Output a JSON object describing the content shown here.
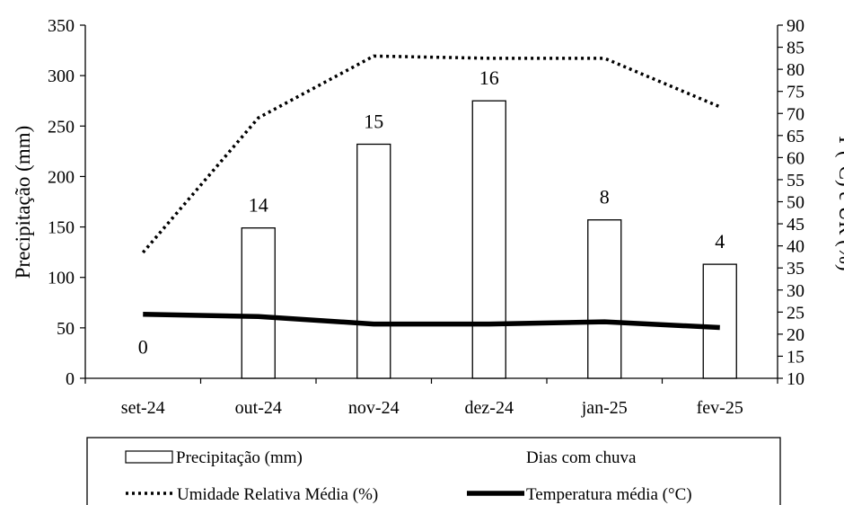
{
  "chart_data": {
    "type": "bar",
    "categories": [
      "set-24",
      "out-24",
      "nov-24",
      "dez-24",
      "jan-25",
      "fev-25"
    ],
    "series": [
      {
        "name": "Precipitação (mm)",
        "type": "bar",
        "axis": "left",
        "values": [
          0,
          149,
          232,
          275,
          157,
          113
        ],
        "fill": "#ffffff",
        "stroke": "#000000"
      },
      {
        "name": "Dias com chuva",
        "type": "label",
        "values": [
          0,
          14,
          15,
          16,
          8,
          4
        ]
      },
      {
        "name": "Umidade Relativa Média (%)",
        "type": "line",
        "axis": "right",
        "style": "dotted",
        "values": [
          38.5,
          69,
          83,
          82.5,
          82.5,
          71.5
        ],
        "color": "#000000"
      },
      {
        "name": "Temperatura média (°C)",
        "type": "line",
        "axis": "right",
        "style": "solid",
        "values": [
          24.5,
          24,
          22.3,
          22.3,
          22.8,
          21.5
        ],
        "color": "#000000"
      }
    ],
    "ylabel": "Precipitação (mm)",
    "y2label": "T (°C) e UR (%)",
    "ylim": [
      0,
      350
    ],
    "yticks": [
      0,
      50,
      100,
      150,
      200,
      250,
      300,
      350
    ],
    "y2lim": [
      10,
      90
    ],
    "y2ticks": [
      10,
      15,
      20,
      25,
      30,
      35,
      40,
      45,
      50,
      55,
      60,
      65,
      70,
      75,
      80,
      85,
      90
    ],
    "grid": false,
    "legend_position": "bottom"
  }
}
